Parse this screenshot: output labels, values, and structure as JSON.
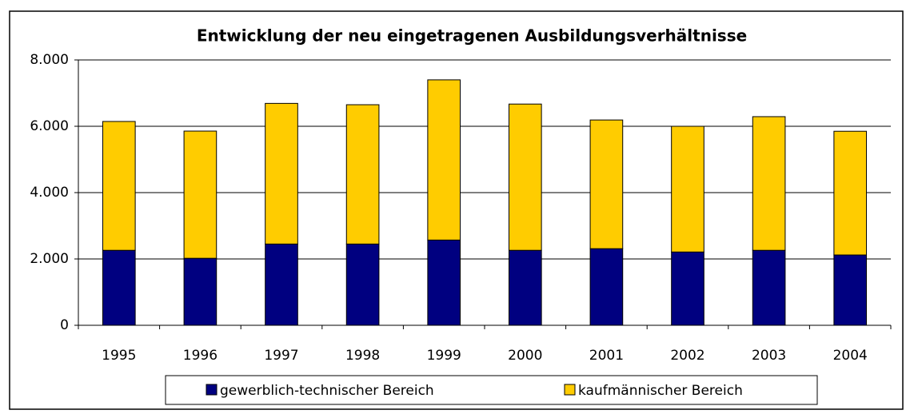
{
  "chart_data": {
    "type": "stacked_bar",
    "title": "Entwicklung der neu eingetragenen Ausbildungsverhältnisse",
    "categories": [
      "1995",
      "1996",
      "1997",
      "1998",
      "1999",
      "2000",
      "2001",
      "2002",
      "2003",
      "2004"
    ],
    "series": [
      {
        "name": "gewerblich-technischer Bereich",
        "color": "#000080",
        "values": [
          2260,
          2020,
          2450,
          2450,
          2570,
          2260,
          2310,
          2210,
          2260,
          2120
        ]
      },
      {
        "name": "kaufmännischer Bereich",
        "color": "#ffcc00",
        "values": [
          3885,
          3835,
          4240,
          4200,
          4830,
          4410,
          3880,
          3790,
          4030,
          3730
        ]
      }
    ],
    "ylim": [
      0,
      8000
    ],
    "yticks": [
      0,
      {
        "value": 2000,
        "label": "2.000"
      },
      {
        "value": 4000,
        "label": "4.000"
      },
      {
        "value": 6000,
        "label": "6.000"
      },
      {
        "value": 8000,
        "label": "8.000"
      }
    ],
    "grid": true,
    "legend": "bottom"
  }
}
